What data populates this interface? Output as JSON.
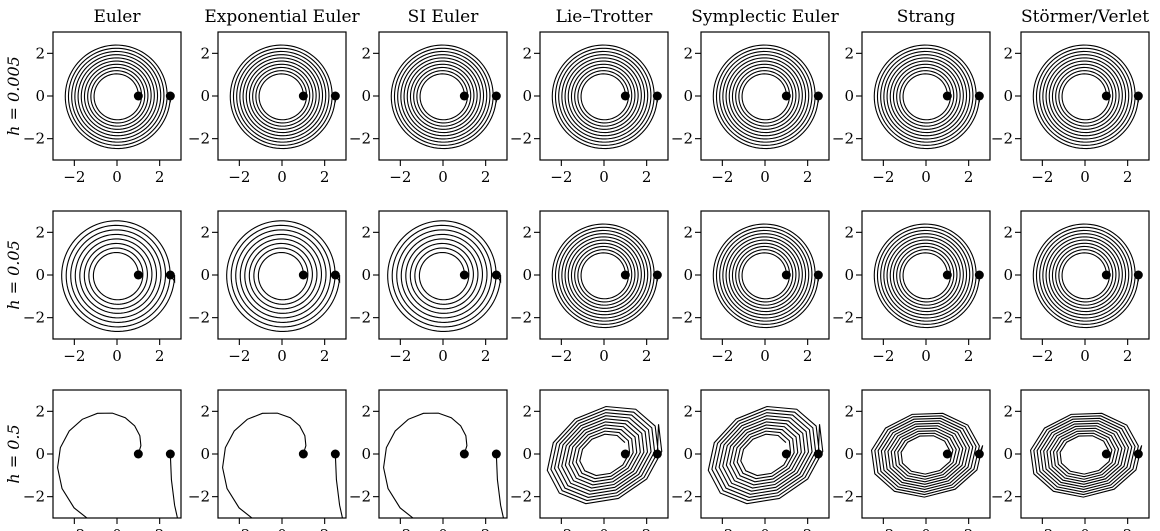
{
  "figure": {
    "column_titles": [
      "Euler",
      "Exponential Euler",
      "SI Euler",
      "Lie–Trotter",
      "Symplectic Euler",
      "Strang",
      "Störmer/Verlet"
    ],
    "row_labels": [
      "h = 0.005",
      "h = 0.05",
      "h = 0.5"
    ],
    "line_color": "#000000"
  },
  "chart_data": {
    "type": "line",
    "layout": "grid 3 rows x 7 columns",
    "xlim": [
      -3,
      3
    ],
    "ylim": [
      -3,
      3
    ],
    "xticks": [
      -2,
      0,
      2
    ],
    "yticks": [
      -2,
      0,
      2
    ],
    "grid": false,
    "markers": [
      {
        "x": 1.0,
        "y": 0.0
      },
      {
        "x": 2.5,
        "y": 0.0
      }
    ],
    "panels": [
      {
        "row": 0,
        "col": 0,
        "pattern": "spiral",
        "r_start": 1.0,
        "r_end": 2.5,
        "turns": 10
      },
      {
        "row": 0,
        "col": 1,
        "pattern": "spiral",
        "r_start": 1.0,
        "r_end": 2.5,
        "turns": 10
      },
      {
        "row": 0,
        "col": 2,
        "pattern": "spiral",
        "r_start": 1.0,
        "r_end": 2.5,
        "turns": 10
      },
      {
        "row": 0,
        "col": 3,
        "pattern": "spiral",
        "r_start": 1.0,
        "r_end": 2.5,
        "turns": 10
      },
      {
        "row": 0,
        "col": 4,
        "pattern": "spiral",
        "r_start": 1.0,
        "r_end": 2.5,
        "turns": 10
      },
      {
        "row": 0,
        "col": 5,
        "pattern": "spiral",
        "r_start": 1.0,
        "r_end": 2.5,
        "turns": 10
      },
      {
        "row": 0,
        "col": 6,
        "pattern": "spiral",
        "r_start": 1.0,
        "r_end": 2.5,
        "turns": 10
      },
      {
        "row": 1,
        "col": 0,
        "pattern": "spiral",
        "r_start": 1.0,
        "r_end": 2.7,
        "turns": 8
      },
      {
        "row": 1,
        "col": 1,
        "pattern": "spiral",
        "r_start": 1.0,
        "r_end": 2.7,
        "turns": 8
      },
      {
        "row": 1,
        "col": 2,
        "pattern": "spiral",
        "r_start": 1.0,
        "r_end": 2.7,
        "turns": 8
      },
      {
        "row": 1,
        "col": 3,
        "pattern": "spiral",
        "r_start": 1.0,
        "r_end": 2.5,
        "turns": 10
      },
      {
        "row": 1,
        "col": 4,
        "pattern": "spiral",
        "r_start": 1.0,
        "r_end": 2.5,
        "turns": 10
      },
      {
        "row": 1,
        "col": 5,
        "pattern": "spiral",
        "r_start": 1.0,
        "r_end": 2.5,
        "turns": 10
      },
      {
        "row": 1,
        "col": 6,
        "pattern": "spiral",
        "r_start": 1.0,
        "r_end": 2.5,
        "turns": 10
      },
      {
        "row": 2,
        "col": 0,
        "pattern": "coarse-spiral",
        "r_start": 1.0,
        "r_end": 3.6,
        "turns": 1
      },
      {
        "row": 2,
        "col": 1,
        "pattern": "coarse-spiral",
        "r_start": 1.0,
        "r_end": 3.6,
        "turns": 1
      },
      {
        "row": 2,
        "col": 2,
        "pattern": "coarse-spiral",
        "r_start": 1.0,
        "r_end": 3.6,
        "turns": 1
      },
      {
        "row": 2,
        "col": 3,
        "pattern": "tilted-polygon-spiral",
        "r_start": 1.0,
        "r_end": 2.6,
        "turns": 10
      },
      {
        "row": 2,
        "col": 4,
        "pattern": "tilted-polygon-spiral",
        "r_start": 1.0,
        "r_end": 2.6,
        "turns": 10
      },
      {
        "row": 2,
        "col": 5,
        "pattern": "polygon-spiral",
        "r_start": 1.0,
        "r_end": 2.4,
        "turns": 10
      },
      {
        "row": 2,
        "col": 6,
        "pattern": "polygon-spiral",
        "r_start": 1.0,
        "r_end": 2.4,
        "turns": 10
      }
    ]
  }
}
